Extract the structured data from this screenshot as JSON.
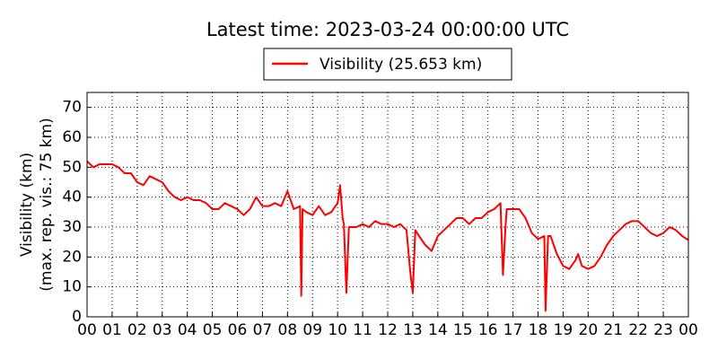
{
  "chart_data": {
    "type": "line",
    "title": "Latest time: 2023-03-24 00:00:00 UTC",
    "y_label": [
      "Visibility (km)",
      "(max. rep. vis.: 75 km)"
    ],
    "x": [
      0,
      0.25,
      0.5,
      0.75,
      1,
      1.25,
      1.5,
      1.75,
      2,
      2.25,
      2.5,
      2.75,
      3,
      3.25,
      3.5,
      3.75,
      4,
      4.25,
      4.5,
      4.75,
      5,
      5.25,
      5.5,
      5.75,
      6,
      6.25,
      6.5,
      6.75,
      7,
      7.25,
      7.5,
      7.75,
      8,
      8.25,
      8.5,
      8.55,
      8.6,
      8.75,
      9,
      9.25,
      9.5,
      9.75,
      10,
      10.1,
      10.2,
      10.25,
      10.35,
      10.45,
      10.75,
      11,
      11.25,
      11.5,
      11.75,
      12,
      12.25,
      12.5,
      12.75,
      12.9,
      13,
      13.1,
      13.25,
      13.5,
      13.75,
      14,
      14.25,
      14.5,
      14.75,
      15,
      15.25,
      15.5,
      15.75,
      16,
      16.25,
      16.5,
      16.6,
      16.7,
      16.75,
      17,
      17.25,
      17.5,
      17.75,
      18,
      18.25,
      18.3,
      18.4,
      18.5,
      18.75,
      19,
      19.25,
      19.5,
      19.6,
      19.75,
      20,
      20.25,
      20.5,
      20.75,
      21,
      21.25,
      21.5,
      21.75,
      22,
      22.25,
      22.5,
      22.75,
      23,
      23.25,
      23.5,
      23.75,
      24
    ],
    "series": [
      {
        "name": "Visibility (25.653 km)",
        "color": "#ff0000",
        "values": [
          52,
          50,
          51,
          51,
          51,
          50,
          48,
          48,
          45,
          44,
          47,
          46,
          45,
          42,
          40,
          39,
          40,
          39,
          39,
          38,
          36,
          36,
          38,
          37,
          36,
          34,
          36,
          40,
          37,
          37,
          38,
          37,
          42,
          36,
          37,
          7,
          36,
          35,
          34,
          37,
          34,
          35,
          38,
          44,
          33,
          31,
          8,
          30,
          30,
          31,
          30,
          32,
          31,
          31,
          30,
          31,
          29,
          15,
          8,
          29,
          27,
          24,
          22,
          27,
          29,
          31,
          33,
          33,
          31,
          33,
          33,
          35,
          36,
          38,
          14,
          30,
          36,
          36,
          36,
          33,
          28,
          26,
          27,
          2,
          27,
          27,
          21,
          17,
          16,
          19,
          21,
          17,
          16,
          17,
          20,
          24,
          27,
          29,
          31,
          32,
          32,
          30,
          28,
          27,
          28,
          30,
          29,
          27,
          25.653
        ]
      }
    ],
    "xlim": [
      0,
      24
    ],
    "xticks": [
      {
        "value": 0,
        "label": "00"
      },
      {
        "value": 1,
        "label": "01"
      },
      {
        "value": 2,
        "label": "02"
      },
      {
        "value": 3,
        "label": "03"
      },
      {
        "value": 4,
        "label": "04"
      },
      {
        "value": 5,
        "label": "05"
      },
      {
        "value": 6,
        "label": "06"
      },
      {
        "value": 7,
        "label": "07"
      },
      {
        "value": 8,
        "label": "08"
      },
      {
        "value": 9,
        "label": "09"
      },
      {
        "value": 10,
        "label": "10"
      },
      {
        "value": 11,
        "label": "11"
      },
      {
        "value": 12,
        "label": "12"
      },
      {
        "value": 13,
        "label": "13"
      },
      {
        "value": 14,
        "label": "14"
      },
      {
        "value": 15,
        "label": "15"
      },
      {
        "value": 16,
        "label": "16"
      },
      {
        "value": 17,
        "label": "17"
      },
      {
        "value": 18,
        "label": "18"
      },
      {
        "value": 19,
        "label": "19"
      },
      {
        "value": 20,
        "label": "20"
      },
      {
        "value": 21,
        "label": "21"
      },
      {
        "value": 22,
        "label": "22"
      },
      {
        "value": 23,
        "label": "23"
      },
      {
        "value": 24,
        "label": "00"
      }
    ],
    "ylim": [
      0,
      75
    ],
    "yticks": [
      0,
      10,
      20,
      30,
      40,
      50,
      60,
      70
    ],
    "grid": true
  }
}
